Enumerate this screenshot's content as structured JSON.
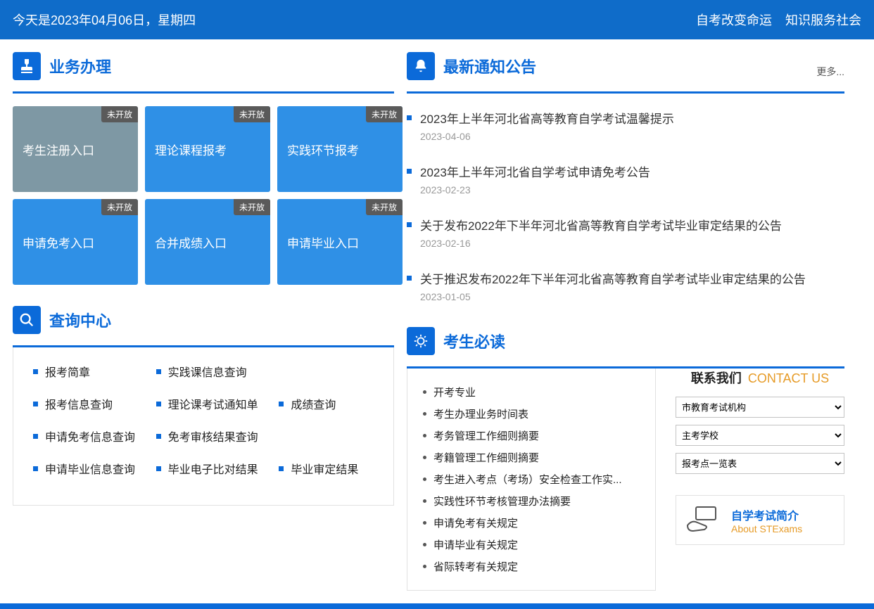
{
  "topbar": {
    "date_text": "今天是2023年04月06日，星期四",
    "slogan1": "自考改变命运",
    "slogan2": "知识服务社会"
  },
  "services": {
    "title": "业务办理",
    "badge_text": "未开放",
    "tiles": [
      {
        "label": "考生注册入口",
        "disabled_style": true
      },
      {
        "label": "理论课程报考",
        "disabled_style": false
      },
      {
        "label": "实践环节报考",
        "disabled_style": false
      },
      {
        "label": "申请免考入口",
        "disabled_style": false
      },
      {
        "label": "合并成绩入口",
        "disabled_style": false
      },
      {
        "label": "申请毕业入口",
        "disabled_style": false
      }
    ]
  },
  "notices": {
    "title": "最新通知公告",
    "more": "更多...",
    "items": [
      {
        "title": "2023年上半年河北省高等教育自学考试温馨提示",
        "date": "2023-04-06"
      },
      {
        "title": "2023年上半年河北省自学考试申请免考公告",
        "date": "2023-02-23"
      },
      {
        "title": "关于发布2022年下半年河北省高等教育自学考试毕业审定结果的公告",
        "date": "2023-02-16"
      },
      {
        "title": "关于推迟发布2022年下半年河北省高等教育自学考试毕业审定结果的公告",
        "date": "2023-01-05"
      }
    ]
  },
  "query": {
    "title": "查询中心",
    "items": [
      "报考简章",
      "实践课信息查询",
      "",
      "报考信息查询",
      "理论课考试通知单",
      "成绩查询",
      "申请免考信息查询",
      "免考审核结果查询",
      "",
      "申请毕业信息查询",
      "毕业电子比对结果",
      "毕业审定结果"
    ]
  },
  "mustread": {
    "title": "考生必读",
    "items": [
      "开考专业",
      "考生办理业务时间表",
      "考务管理工作细则摘要",
      "考籍管理工作细则摘要",
      "考生进入考点（考场）安全检查工作实...",
      "实践性环节考核管理办法摘要",
      "申请免考有关规定",
      "申请毕业有关规定",
      "省际转考有关规定"
    ]
  },
  "contact": {
    "title_cn": "联系我们",
    "title_en": "CONTACT US",
    "select1": "市教育考试机构",
    "select2": "主考学校",
    "select3": "报考点一览表"
  },
  "intro": {
    "line1": "自学考试简介",
    "line2": "About STExams"
  },
  "colors": {
    "primary": "#0b6ad9",
    "topbar": "#0f6cc9",
    "tile": "#2f90e6",
    "tile_first": "#7e98a4",
    "orange": "#e69b27"
  }
}
